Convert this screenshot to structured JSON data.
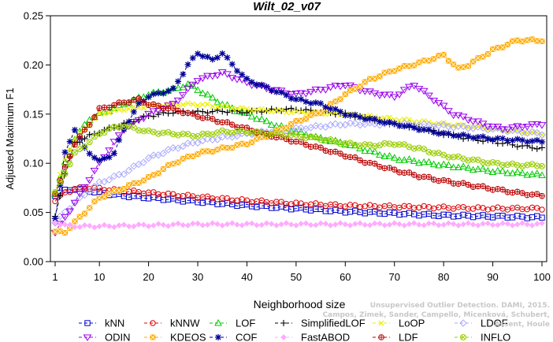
{
  "chart_data": {
    "type": "line",
    "title": "Wilt_02_v07",
    "xlabel": "Neighborhood size",
    "ylabel": "Adjusted Maximum F1",
    "xlim": [
      1,
      100
    ],
    "ylim": [
      0,
      0.25
    ],
    "xticks": [
      1,
      10,
      20,
      30,
      40,
      50,
      60,
      70,
      80,
      90,
      100
    ],
    "xtick_labels": [
      "1",
      "10",
      "20",
      "30",
      "40",
      "50",
      "60",
      "70",
      "80",
      "90",
      "100"
    ],
    "yticks": [
      0,
      0.05,
      0.1,
      0.15,
      0.2,
      0.25
    ],
    "ytick_labels": [
      "0.00",
      "0.05",
      "0.10",
      "0.15",
      "0.20",
      "0.25"
    ],
    "grid": false,
    "legend_position": "bottom",
    "legend_columns": 6,
    "series": [
      {
        "name": "kNN",
        "color": "#0000cc",
        "marker": "square",
        "points": [
          [
            1,
            0.068
          ],
          [
            3,
            0.072
          ],
          [
            5,
            0.074
          ],
          [
            8,
            0.072
          ],
          [
            10,
            0.07
          ],
          [
            15,
            0.067
          ],
          [
            20,
            0.065
          ],
          [
            30,
            0.061
          ],
          [
            40,
            0.057
          ],
          [
            50,
            0.054
          ],
          [
            60,
            0.051
          ],
          [
            70,
            0.049
          ],
          [
            80,
            0.047
          ],
          [
            90,
            0.046
          ],
          [
            100,
            0.045
          ]
        ]
      },
      {
        "name": "kNNW",
        "color": "#dd0000",
        "marker": "circle",
        "points": [
          [
            1,
            0.062
          ],
          [
            3,
            0.07
          ],
          [
            5,
            0.074
          ],
          [
            8,
            0.075
          ],
          [
            10,
            0.074
          ],
          [
            15,
            0.072
          ],
          [
            20,
            0.07
          ],
          [
            30,
            0.066
          ],
          [
            40,
            0.062
          ],
          [
            50,
            0.059
          ],
          [
            60,
            0.057
          ],
          [
            70,
            0.056
          ],
          [
            80,
            0.055
          ],
          [
            90,
            0.054
          ],
          [
            100,
            0.054
          ]
        ]
      },
      {
        "name": "LOF",
        "color": "#00cc00",
        "marker": "triangle-up",
        "points": [
          [
            1,
            0.07
          ],
          [
            3,
            0.1
          ],
          [
            5,
            0.125
          ],
          [
            8,
            0.145
          ],
          [
            10,
            0.15
          ],
          [
            15,
            0.16
          ],
          [
            20,
            0.17
          ],
          [
            25,
            0.175
          ],
          [
            28,
            0.18
          ],
          [
            30,
            0.175
          ],
          [
            35,
            0.16
          ],
          [
            40,
            0.15
          ],
          [
            45,
            0.14
          ],
          [
            50,
            0.132
          ],
          [
            55,
            0.125
          ],
          [
            60,
            0.12
          ],
          [
            65,
            0.112
          ],
          [
            70,
            0.105
          ],
          [
            80,
            0.098
          ],
          [
            90,
            0.092
          ],
          [
            100,
            0.088
          ]
        ]
      },
      {
        "name": "SimplifiedLOF",
        "color": "#000000",
        "marker": "plus",
        "points": [
          [
            1,
            0.045
          ],
          [
            3,
            0.09
          ],
          [
            5,
            0.12
          ],
          [
            8,
            0.128
          ],
          [
            10,
            0.132
          ],
          [
            15,
            0.14
          ],
          [
            20,
            0.148
          ],
          [
            25,
            0.152
          ],
          [
            30,
            0.152
          ],
          [
            35,
            0.153
          ],
          [
            40,
            0.152
          ],
          [
            45,
            0.154
          ],
          [
            50,
            0.155
          ],
          [
            55,
            0.152
          ],
          [
            60,
            0.15
          ],
          [
            65,
            0.145
          ],
          [
            70,
            0.14
          ],
          [
            75,
            0.136
          ],
          [
            80,
            0.13
          ],
          [
            85,
            0.125
          ],
          [
            90,
            0.122
          ],
          [
            95,
            0.118
          ],
          [
            100,
            0.115
          ]
        ]
      },
      {
        "name": "LoOP",
        "color": "#eeee00",
        "marker": "cross",
        "points": [
          [
            1,
            0.07
          ],
          [
            3,
            0.105
          ],
          [
            5,
            0.125
          ],
          [
            8,
            0.14
          ],
          [
            10,
            0.15
          ],
          [
            15,
            0.155
          ],
          [
            20,
            0.158
          ],
          [
            25,
            0.16
          ],
          [
            30,
            0.16
          ],
          [
            40,
            0.155
          ],
          [
            50,
            0.152
          ],
          [
            60,
            0.15
          ],
          [
            70,
            0.145
          ],
          [
            80,
            0.14
          ],
          [
            90,
            0.135
          ],
          [
            100,
            0.13
          ]
        ]
      },
      {
        "name": "LDOF",
        "color": "#aaaaff",
        "marker": "diamond",
        "points": [
          [
            1,
            0.04
          ],
          [
            5,
            0.06
          ],
          [
            10,
            0.08
          ],
          [
            15,
            0.09
          ],
          [
            20,
            0.105
          ],
          [
            25,
            0.115
          ],
          [
            30,
            0.122
          ],
          [
            40,
            0.13
          ],
          [
            50,
            0.135
          ],
          [
            60,
            0.14
          ],
          [
            70,
            0.14
          ],
          [
            80,
            0.138
          ],
          [
            90,
            0.135
          ],
          [
            100,
            0.13
          ]
        ]
      },
      {
        "name": "ODIN",
        "color": "#9900ee",
        "marker": "triangle-down",
        "points": [
          [
            1,
            0.03
          ],
          [
            5,
            0.06
          ],
          [
            10,
            0.1
          ],
          [
            15,
            0.135
          ],
          [
            20,
            0.15
          ],
          [
            25,
            0.16
          ],
          [
            30,
            0.185
          ],
          [
            35,
            0.192
          ],
          [
            40,
            0.182
          ],
          [
            45,
            0.175
          ],
          [
            50,
            0.17
          ],
          [
            55,
            0.175
          ],
          [
            60,
            0.18
          ],
          [
            65,
            0.172
          ],
          [
            70,
            0.168
          ],
          [
            74,
            0.18
          ],
          [
            78,
            0.165
          ],
          [
            82,
            0.15
          ],
          [
            88,
            0.14
          ],
          [
            92,
            0.135
          ],
          [
            100,
            0.14
          ]
        ]
      },
      {
        "name": "KDEOS",
        "color": "#ffaa00",
        "marker": "square-x",
        "points": [
          [
            1,
            0.03
          ],
          [
            3,
            0.03
          ],
          [
            5,
            0.04
          ],
          [
            8,
            0.055
          ],
          [
            10,
            0.065
          ],
          [
            15,
            0.075
          ],
          [
            20,
            0.085
          ],
          [
            25,
            0.1
          ],
          [
            30,
            0.11
          ],
          [
            35,
            0.115
          ],
          [
            40,
            0.12
          ],
          [
            45,
            0.13
          ],
          [
            50,
            0.142
          ],
          [
            55,
            0.152
          ],
          [
            60,
            0.17
          ],
          [
            65,
            0.185
          ],
          [
            70,
            0.195
          ],
          [
            75,
            0.202
          ],
          [
            80,
            0.21
          ],
          [
            83,
            0.196
          ],
          [
            85,
            0.2
          ],
          [
            90,
            0.215
          ],
          [
            95,
            0.225
          ],
          [
            100,
            0.225
          ]
        ]
      },
      {
        "name": "COF",
        "color": "#000099",
        "marker": "star",
        "points": [
          [
            1,
            0.045
          ],
          [
            3,
            0.11
          ],
          [
            5,
            0.135
          ],
          [
            7,
            0.115
          ],
          [
            10,
            0.102
          ],
          [
            13,
            0.11
          ],
          [
            15,
            0.135
          ],
          [
            18,
            0.16
          ],
          [
            20,
            0.168
          ],
          [
            25,
            0.175
          ],
          [
            28,
            0.2
          ],
          [
            30,
            0.212
          ],
          [
            33,
            0.205
          ],
          [
            35,
            0.212
          ],
          [
            38,
            0.195
          ],
          [
            40,
            0.185
          ],
          [
            45,
            0.175
          ],
          [
            50,
            0.165
          ],
          [
            55,
            0.16
          ],
          [
            60,
            0.15
          ],
          [
            65,
            0.145
          ],
          [
            70,
            0.14
          ],
          [
            75,
            0.135
          ],
          [
            80,
            0.13
          ],
          [
            90,
            0.125
          ],
          [
            100,
            0.122
          ]
        ]
      },
      {
        "name": "FastABOD",
        "color": "#ffaaff",
        "marker": "diamond-filled",
        "points": [
          [
            1,
            0.04
          ],
          [
            3,
            0.037
          ],
          [
            5,
            0.036
          ],
          [
            10,
            0.036
          ],
          [
            20,
            0.037
          ],
          [
            30,
            0.038
          ],
          [
            40,
            0.038
          ],
          [
            50,
            0.038
          ],
          [
            60,
            0.038
          ],
          [
            70,
            0.038
          ],
          [
            80,
            0.038
          ],
          [
            90,
            0.038
          ],
          [
            100,
            0.038
          ]
        ]
      },
      {
        "name": "LDF",
        "color": "#bb0000",
        "marker": "circle-plus",
        "points": [
          [
            1,
            0.07
          ],
          [
            3,
            0.095
          ],
          [
            5,
            0.12
          ],
          [
            8,
            0.14
          ],
          [
            10,
            0.155
          ],
          [
            15,
            0.162
          ],
          [
            18,
            0.165
          ],
          [
            20,
            0.16
          ],
          [
            25,
            0.155
          ],
          [
            30,
            0.148
          ],
          [
            35,
            0.142
          ],
          [
            40,
            0.135
          ],
          [
            45,
            0.128
          ],
          [
            50,
            0.122
          ],
          [
            55,
            0.115
          ],
          [
            60,
            0.108
          ],
          [
            65,
            0.1
          ],
          [
            70,
            0.093
          ],
          [
            75,
            0.087
          ],
          [
            80,
            0.082
          ],
          [
            85,
            0.078
          ],
          [
            90,
            0.074
          ],
          [
            95,
            0.07
          ],
          [
            100,
            0.067
          ]
        ]
      },
      {
        "name": "INFLO",
        "color": "#99cc00",
        "marker": "circle-x",
        "points": [
          [
            1,
            0.07
          ],
          [
            5,
            0.11
          ],
          [
            10,
            0.13
          ],
          [
            12,
            0.135
          ],
          [
            15,
            0.138
          ],
          [
            20,
            0.132
          ],
          [
            25,
            0.13
          ],
          [
            30,
            0.128
          ],
          [
            35,
            0.132
          ],
          [
            40,
            0.132
          ],
          [
            45,
            0.13
          ],
          [
            50,
            0.128
          ],
          [
            55,
            0.125
          ],
          [
            60,
            0.12
          ],
          [
            65,
            0.118
          ],
          [
            70,
            0.12
          ],
          [
            75,
            0.115
          ],
          [
            80,
            0.108
          ],
          [
            85,
            0.104
          ],
          [
            90,
            0.1
          ],
          [
            95,
            0.098
          ],
          [
            100,
            0.098
          ]
        ]
      }
    ]
  },
  "watermark": {
    "line1": "Unsupervised Outlier Detection. DAMI, 2015.",
    "line2": "Campos, Zimek, Sander, Campello, Micenková, Schubert, Assent, Houle"
  }
}
